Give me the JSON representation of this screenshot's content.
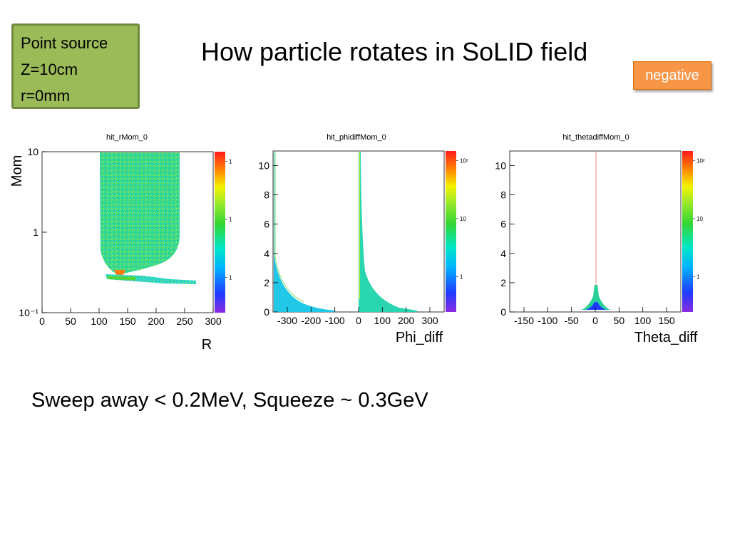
{
  "slide": {
    "title": "How particle rotates in SoLID field",
    "badge": "negative",
    "source_box": [
      "Point source",
      "Z=10cm",
      "r=0mm"
    ],
    "summary": "Sweep away < 0.2MeV,  Squeeze ~ 0.3GeV",
    "colors": {
      "box_fill": "#9bbb59",
      "box_border": "#71893f",
      "badge_fill": "#f79646"
    }
  },
  "chart_data": [
    {
      "type": "heatmap",
      "title": "hit_rMom_0",
      "xlabel": "R",
      "ylabel": "Mom",
      "xlim": [
        0,
        300
      ],
      "ylim": [
        0.1,
        10
      ],
      "ylog": true,
      "xticks": [
        "0",
        "50",
        "100",
        "150",
        "200",
        "250",
        "300"
      ],
      "yticks": [
        "10",
        "1",
        "10⁻¹"
      ],
      "colorbar_ticks": [
        "1",
        "1",
        "1"
      ],
      "description_data": {
        "band_x": [
          100,
          250
        ],
        "band_min_mom": 0.3,
        "tail_x": [
          110,
          270
        ],
        "tail_mom": [
          0.22,
          0.3
        ]
      }
    },
    {
      "type": "heatmap",
      "title": "hit_phidiffMom_0",
      "xlabel": "Phi_diff",
      "ylabel": "",
      "xlim": [
        -360,
        360
      ],
      "ylim": [
        0,
        11
      ],
      "ylog": false,
      "xticks": [
        "-300",
        "-200",
        "-100",
        "0",
        "100",
        "200",
        "300"
      ],
      "yticks": [
        "0",
        "2",
        "4",
        "6",
        "8",
        "10"
      ],
      "colorbar_ticks": [
        "10²",
        "10",
        "1"
      ]
    },
    {
      "type": "heatmap",
      "title": "hit_thetadiffMom_0",
      "xlabel": "Theta_diff",
      "ylabel": "",
      "xlim": [
        -180,
        180
      ],
      "ylim": [
        0,
        11
      ],
      "ylog": false,
      "xticks": [
        "-150",
        "-100",
        "-50",
        "0",
        "50",
        "100",
        "150"
      ],
      "yticks": [
        "0",
        "2",
        "4",
        "6",
        "8",
        "10"
      ],
      "colorbar_ticks": [
        "10²",
        "10",
        "1"
      ]
    }
  ]
}
